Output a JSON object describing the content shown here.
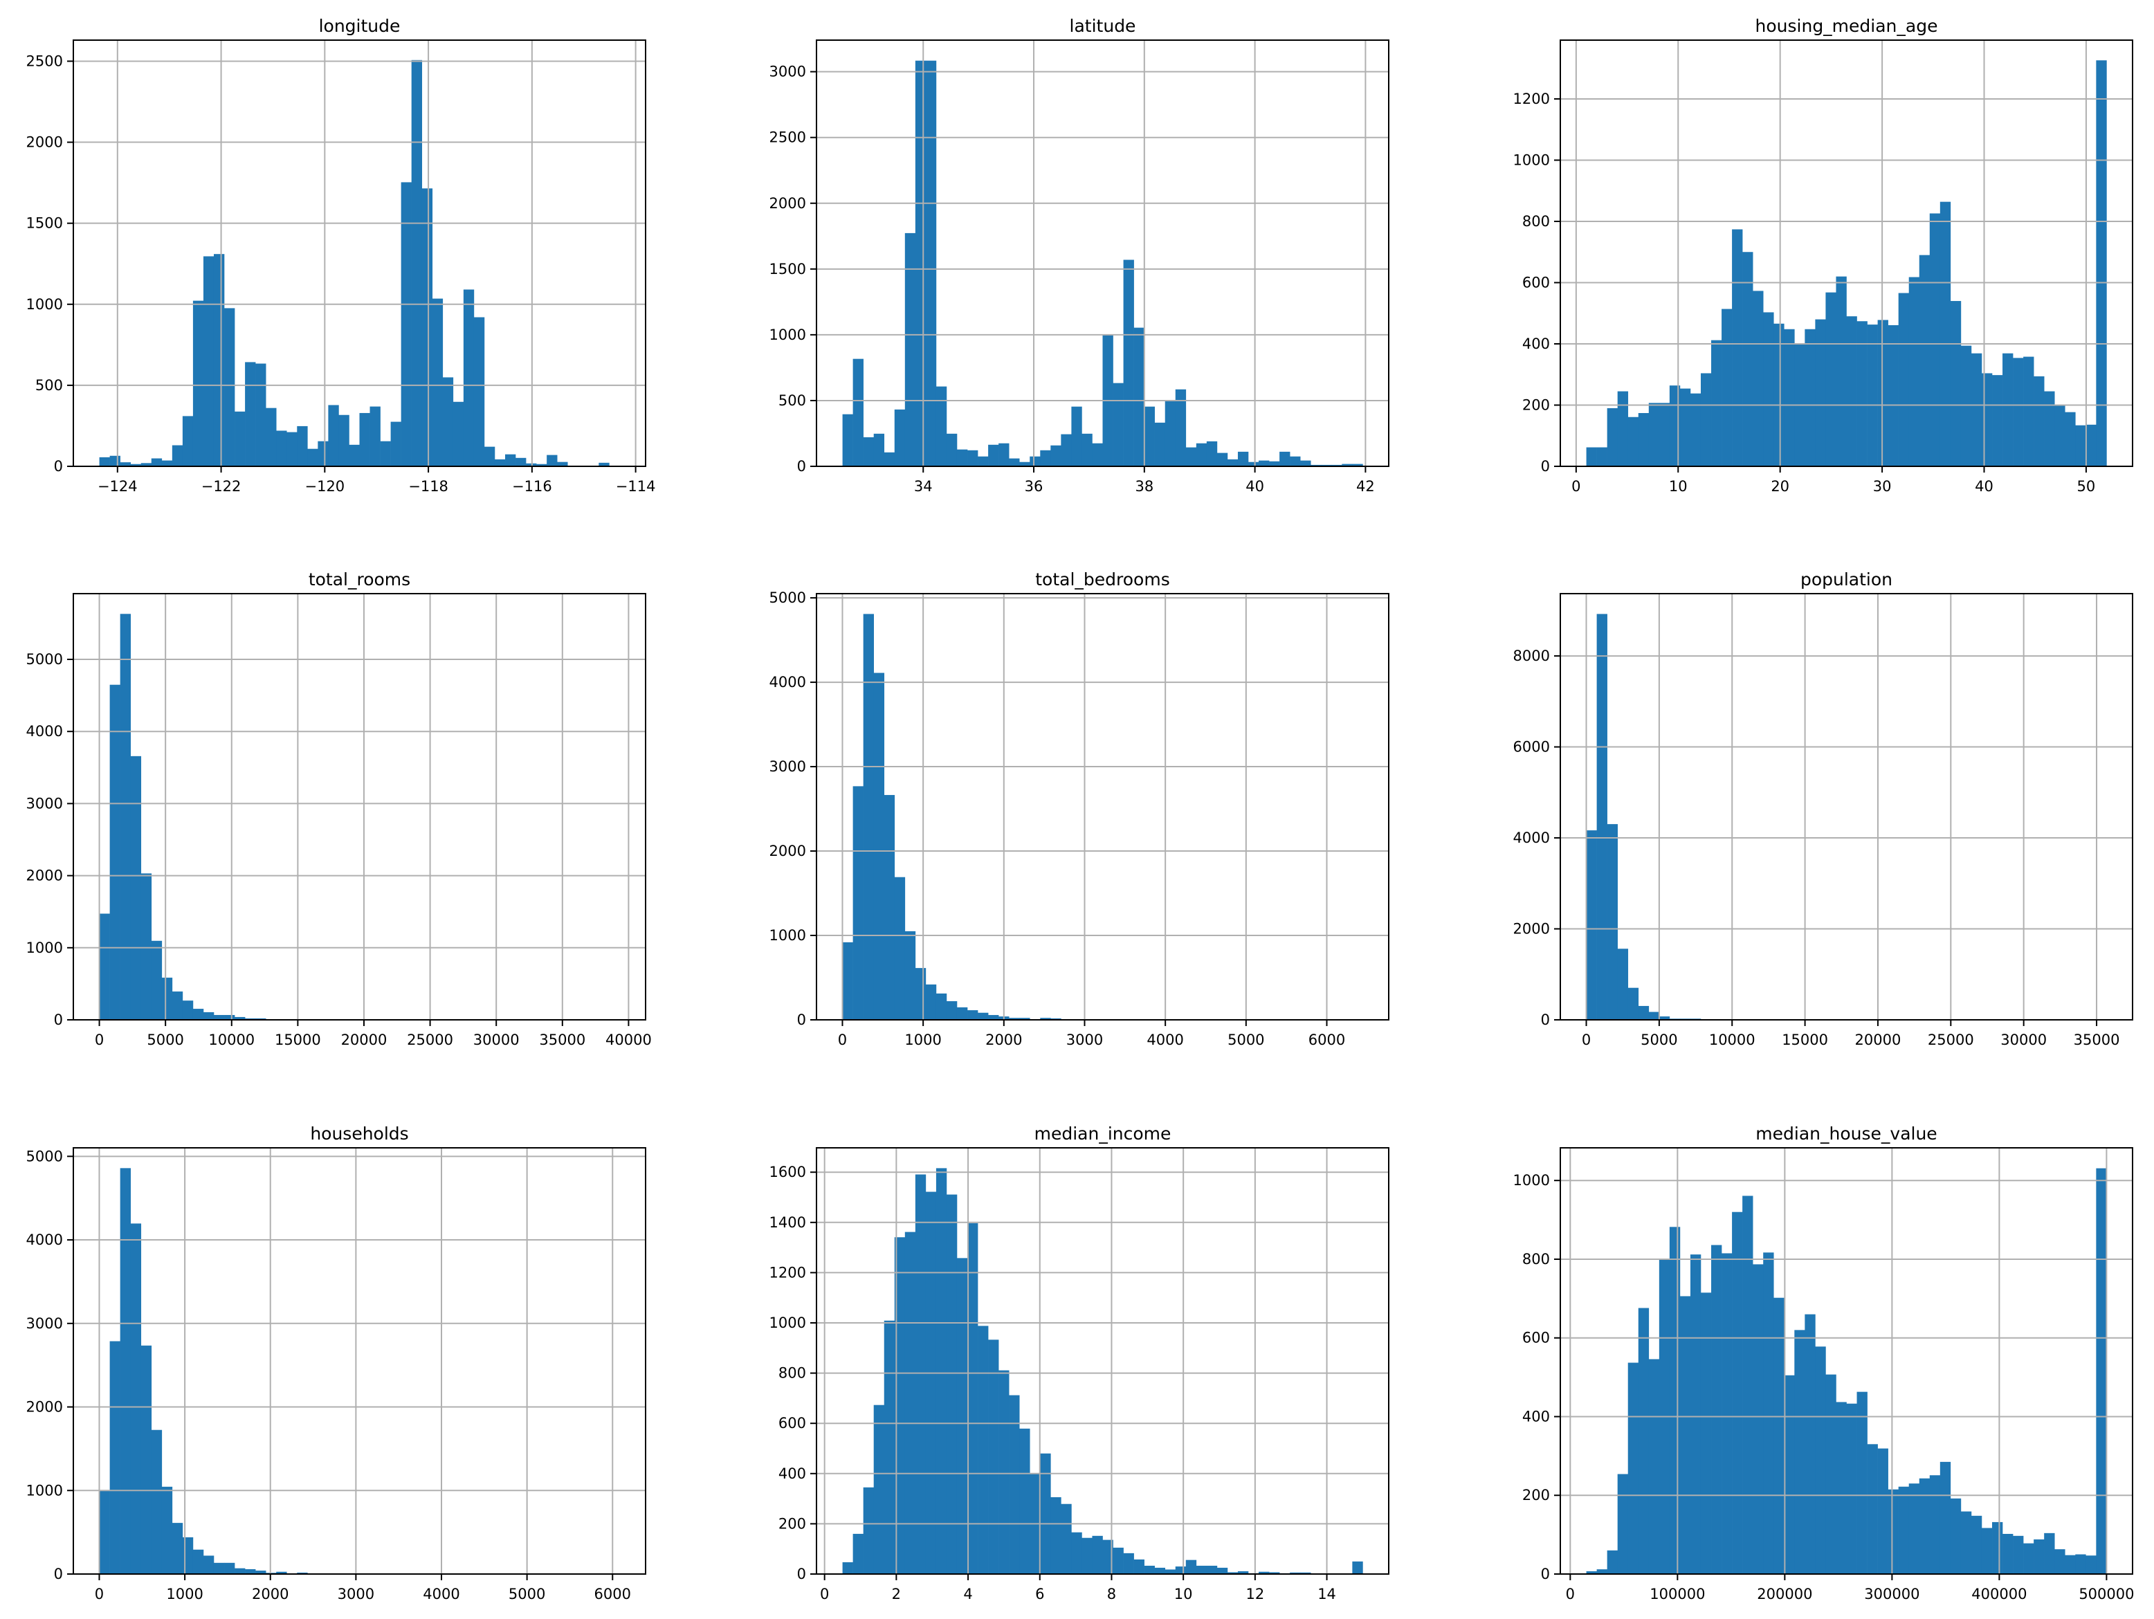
{
  "colors": {
    "bar": "#1f77b4",
    "grid": "#b0b0b0",
    "axis": "#000000"
  },
  "chart_data": [
    {
      "type": "bar",
      "title": "longitude",
      "bins": 50,
      "range": [
        -124.35,
        -114.31
      ],
      "ylim": [
        0,
        2630
      ],
      "xticks": [
        -124,
        -122,
        -120,
        -118,
        -116,
        -114
      ],
      "xtick_labels": [
        "−124",
        "−122",
        "−120",
        "−118",
        "−116",
        "−114"
      ],
      "yticks": [
        0,
        500,
        1000,
        1500,
        2000,
        2500
      ],
      "ytick_labels": [
        "0",
        "500",
        "1000",
        "1500",
        "2000",
        "2500"
      ],
      "values": [
        56,
        65,
        25,
        14,
        20,
        49,
        36,
        130,
        310,
        1022,
        1296,
        1310,
        976,
        338,
        643,
        634,
        360,
        220,
        211,
        248,
        108,
        155,
        378,
        317,
        133,
        329,
        369,
        155,
        275,
        1753,
        2507,
        1715,
        1035,
        549,
        398,
        1091,
        920,
        121,
        43,
        74,
        52,
        18,
        14,
        70,
        27,
        0,
        0,
        0,
        22,
        0
      ]
    },
    {
      "type": "bar",
      "title": "latitude",
      "bins": 50,
      "range": [
        32.54,
        41.95
      ],
      "ylim": [
        0,
        3240
      ],
      "xticks": [
        34,
        36,
        38,
        40,
        42
      ],
      "xtick_labels": [
        "34",
        "36",
        "38",
        "40",
        "42"
      ],
      "yticks": [
        0,
        500,
        1000,
        1500,
        2000,
        2500,
        3000
      ],
      "ytick_labels": [
        "0",
        "500",
        "1000",
        "1500",
        "2000",
        "2500",
        "3000"
      ],
      "values": [
        396,
        817,
        221,
        248,
        106,
        432,
        1773,
        3084,
        3084,
        607,
        248,
        128,
        122,
        75,
        164,
        175,
        60,
        33,
        75,
        122,
        159,
        244,
        454,
        248,
        175,
        999,
        633,
        1570,
        1054,
        454,
        332,
        498,
        585,
        144,
        175,
        190,
        102,
        53,
        111,
        33,
        44,
        38,
        111,
        75,
        44,
        11,
        11,
        11,
        18,
        18
      ]
    },
    {
      "type": "bar",
      "title": "housing_median_age",
      "bins": 50,
      "range": [
        1,
        52
      ],
      "ylim": [
        0,
        1392
      ],
      "xticks": [
        0,
        10,
        20,
        30,
        40,
        50
      ],
      "xtick_labels": [
        "0",
        "10",
        "20",
        "30",
        "40",
        "50"
      ],
      "yticks": [
        0,
        200,
        400,
        600,
        800,
        1000,
        1200
      ],
      "ytick_labels": [
        "0",
        "200",
        "400",
        "600",
        "800",
        "1000",
        "1200"
      ],
      "values": [
        62,
        62,
        190,
        245,
        161,
        174,
        207,
        207,
        264,
        254,
        238,
        304,
        412,
        514,
        774,
        700,
        573,
        503,
        466,
        448,
        401,
        448,
        480,
        568,
        620,
        490,
        474,
        463,
        478,
        461,
        566,
        618,
        690,
        826,
        864,
        540,
        394,
        369,
        304,
        298,
        369,
        354,
        358,
        294,
        245,
        200,
        177,
        134,
        136,
        1326
      ]
    },
    {
      "type": "bar",
      "title": "total_rooms",
      "bins": 50,
      "range": [
        2,
        39320
      ],
      "ylim": [
        0,
        5912
      ],
      "xticks": [
        0,
        5000,
        10000,
        15000,
        20000,
        25000,
        30000,
        35000,
        40000
      ],
      "xtick_labels": [
        "0",
        "5000",
        "10000",
        "15000",
        "20000",
        "25000",
        "30000",
        "35000",
        "40000"
      ],
      "yticks": [
        0,
        1000,
        2000,
        3000,
        4000,
        5000
      ],
      "ytick_labels": [
        "0",
        "1000",
        "2000",
        "3000",
        "4000",
        "5000"
      ],
      "values": [
        1473,
        4648,
        5631,
        3658,
        2031,
        1096,
        585,
        393,
        267,
        153,
        106,
        67,
        67,
        39,
        20,
        20,
        8,
        6,
        4,
        3,
        2,
        2,
        1,
        1,
        1,
        1,
        0,
        1,
        0,
        0,
        0,
        0,
        0,
        0,
        1,
        0,
        0,
        0,
        0,
        0,
        0,
        0,
        0,
        0,
        0,
        0,
        0,
        0,
        0,
        1
      ]
    },
    {
      "type": "bar",
      "title": "total_bedrooms",
      "bins": 50,
      "range": [
        1,
        6445
      ],
      "ylim": [
        0,
        5050
      ],
      "xticks": [
        0,
        1000,
        2000,
        3000,
        4000,
        5000,
        6000
      ],
      "xtick_labels": [
        "0",
        "1000",
        "2000",
        "3000",
        "4000",
        "5000",
        "6000"
      ],
      "yticks": [
        0,
        1000,
        2000,
        3000,
        4000,
        5000
      ],
      "ytick_labels": [
        "0",
        "1000",
        "2000",
        "3000",
        "4000",
        "5000"
      ],
      "values": [
        919,
        2768,
        4809,
        4111,
        2664,
        1691,
        1050,
        614,
        419,
        312,
        221,
        148,
        114,
        84,
        57,
        40,
        23,
        23,
        7,
        23,
        17,
        7,
        5,
        4,
        3,
        3,
        2,
        2,
        1,
        1,
        1,
        1,
        1,
        0,
        1,
        0,
        0,
        0,
        0,
        0,
        0,
        0,
        0,
        0,
        0,
        0,
        0,
        0,
        0,
        1
      ]
    },
    {
      "type": "bar",
      "title": "population",
      "bins": 50,
      "range": [
        3,
        35682
      ],
      "ylim": [
        0,
        9370
      ],
      "xticks": [
        0,
        5000,
        10000,
        15000,
        20000,
        25000,
        30000,
        35000
      ],
      "xtick_labels": [
        "0",
        "5000",
        "10000",
        "15000",
        "20000",
        "25000",
        "30000",
        "35000"
      ],
      "yticks": [
        0,
        2000,
        4000,
        6000,
        8000
      ],
      "ytick_labels": [
        "0",
        "2000",
        "4000",
        "6000",
        "8000"
      ],
      "values": [
        4166,
        8923,
        4303,
        1563,
        704,
        305,
        174,
        75,
        25,
        25,
        25,
        12,
        8,
        5,
        3,
        2,
        2,
        1,
        1,
        1,
        0,
        1,
        0,
        0,
        0,
        0,
        0,
        0,
        0,
        0,
        0,
        0,
        0,
        0,
        0,
        0,
        0,
        0,
        0,
        0,
        0,
        0,
        0,
        0,
        0,
        0,
        0,
        0,
        0,
        1
      ]
    },
    {
      "type": "bar",
      "title": "households",
      "bins": 50,
      "range": [
        1,
        6082
      ],
      "ylim": [
        0,
        5102
      ],
      "xticks": [
        0,
        1000,
        2000,
        3000,
        4000,
        5000,
        6000
      ],
      "xtick_labels": [
        "0",
        "1000",
        "2000",
        "3000",
        "4000",
        "5000",
        "6000"
      ],
      "yticks": [
        0,
        1000,
        2000,
        3000,
        4000,
        5000
      ],
      "ytick_labels": [
        "0",
        "1000",
        "2000",
        "3000",
        "4000",
        "5000"
      ],
      "values": [
        997,
        2787,
        4859,
        4196,
        2735,
        1725,
        1045,
        612,
        440,
        292,
        220,
        134,
        134,
        69,
        58,
        41,
        14,
        27,
        7,
        17,
        7,
        7,
        5,
        4,
        3,
        2,
        8,
        2,
        1,
        1,
        1,
        1,
        1,
        0,
        1,
        0,
        0,
        0,
        0,
        0,
        0,
        0,
        0,
        0,
        0,
        0,
        0,
        0,
        0,
        1
      ]
    },
    {
      "type": "bar",
      "title": "median_income",
      "bins": 50,
      "range": [
        0.4999,
        15.0001
      ],
      "ylim": [
        0,
        1697
      ],
      "xticks": [
        0,
        2,
        4,
        6,
        8,
        10,
        12,
        14
      ],
      "xtick_labels": [
        "0",
        "2",
        "4",
        "6",
        "8",
        "10",
        "12",
        "14"
      ],
      "yticks": [
        0,
        200,
        400,
        600,
        800,
        1000,
        1200,
        1400,
        1600
      ],
      "ytick_labels": [
        "0",
        "200",
        "400",
        "600",
        "800",
        "1000",
        "1200",
        "1400",
        "1600"
      ],
      "values": [
        47,
        160,
        345,
        673,
        1009,
        1341,
        1362,
        1591,
        1522,
        1616,
        1511,
        1258,
        1397,
        988,
        933,
        811,
        712,
        579,
        402,
        480,
        306,
        279,
        166,
        144,
        152,
        136,
        105,
        83,
        58,
        33,
        25,
        18,
        30,
        56,
        33,
        33,
        25,
        7,
        11,
        3,
        9,
        7,
        3,
        6,
        6,
        0,
        1,
        1,
        1,
        50
      ]
    },
    {
      "type": "bar",
      "title": "median_house_value",
      "bins": 50,
      "range": [
        14999,
        500001
      ],
      "ylim": [
        0,
        1083
      ],
      "xticks": [
        0,
        100000,
        200000,
        300000,
        400000,
        500000
      ],
      "xtick_labels": [
        "0",
        "100000",
        "200000",
        "300000",
        "400000",
        "500000"
      ],
      "yticks": [
        0,
        200,
        400,
        600,
        800,
        1000
      ],
      "ytick_labels": [
        "0",
        "200",
        "400",
        "600",
        "800",
        "1000"
      ],
      "values": [
        7,
        12,
        60,
        254,
        537,
        676,
        546,
        801,
        882,
        706,
        812,
        715,
        836,
        815,
        920,
        961,
        787,
        817,
        702,
        505,
        620,
        660,
        578,
        507,
        437,
        433,
        463,
        330,
        319,
        215,
        222,
        230,
        243,
        251,
        285,
        192,
        159,
        148,
        117,
        132,
        102,
        97,
        78,
        88,
        104,
        63,
        48,
        50,
        47,
        1031
      ]
    }
  ]
}
